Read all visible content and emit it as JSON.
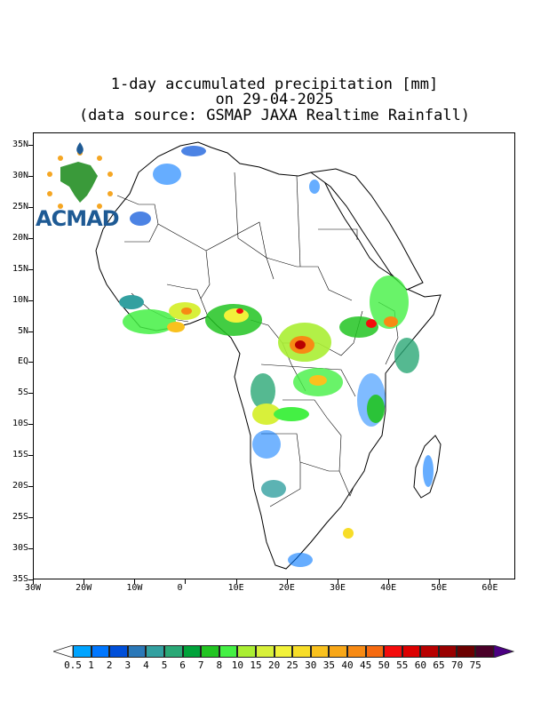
{
  "title": {
    "line1": "1-day accumulated precipitation [mm]",
    "line2": "on 29-04-2025",
    "line3": "(data source: GSMAP JAXA Realtime Rainfall)"
  },
  "logo": {
    "text": "ACMAD"
  },
  "axes": {
    "latitudes": [
      "35N",
      "30N",
      "25N",
      "20N",
      "15N",
      "10N",
      "5N",
      "EQ",
      "5S",
      "10S",
      "15S",
      "20S",
      "25S",
      "30S",
      "35S"
    ],
    "longitudes": [
      "30W",
      "20W",
      "10W",
      "0",
      "10E",
      "20E",
      "30E",
      "40E",
      "50E",
      "60E"
    ],
    "lat_range": [
      -35,
      37
    ],
    "lon_range": [
      -30,
      65
    ]
  },
  "colorbar": {
    "labels": [
      "0.5",
      "1",
      "2",
      "3",
      "4",
      "5",
      "6",
      "7",
      "8",
      "10",
      "15",
      "20",
      "25",
      "30",
      "35",
      "40",
      "45",
      "50",
      "55",
      "60",
      "65",
      "70",
      "75"
    ],
    "colors": [
      "#00a4ff",
      "#0077ff",
      "#004fd9",
      "#2b78b8",
      "#33a0a0",
      "#2aa876",
      "#00a23a",
      "#22c422",
      "#44f044",
      "#aaee33",
      "#d8f03a",
      "#f2f23a",
      "#f7dd28",
      "#f9c11e",
      "#f8a718",
      "#f78a14",
      "#f66a10",
      "#f40c0c",
      "#dc0000",
      "#b80000",
      "#990000",
      "#6b0000",
      "#4a0028"
    ],
    "low_end_color": "#ffffff",
    "high_end_color": "#4b0082"
  },
  "units": "mm"
}
